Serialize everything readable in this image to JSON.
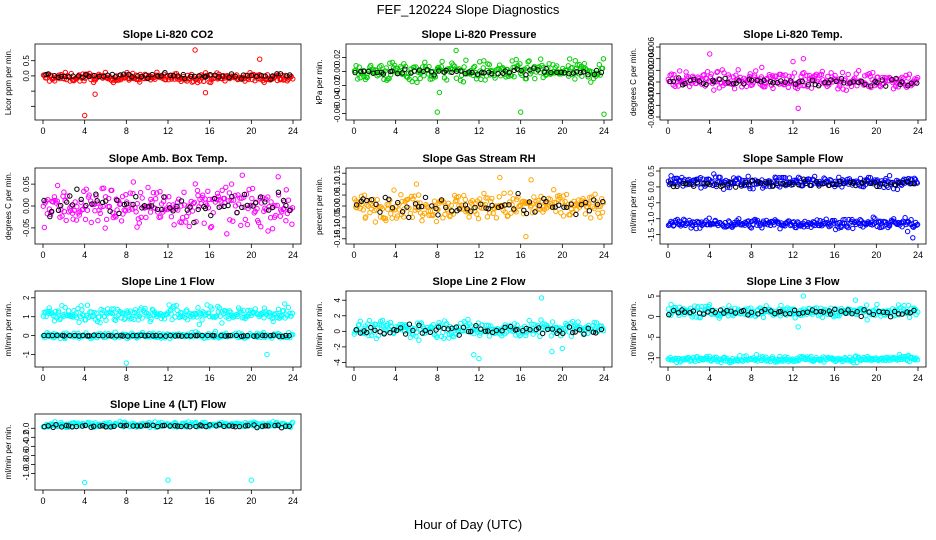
{
  "figure": {
    "title": "FEF_120224  Slope Diagnostics",
    "xlabel": "Hour of Day (UTC)"
  },
  "chart_data": [
    {
      "type": "scatter",
      "title": "Slope Li-820 CO2",
      "ylabel": "Licor ppm per min.",
      "color": "#ff0000",
      "xlim": [
        0,
        24
      ],
      "ylim": [
        -1.35,
        0.95
      ],
      "xticks": [
        0,
        4,
        8,
        12,
        16,
        20,
        24
      ],
      "yticks": [
        -1.0,
        -0.5,
        0.0,
        0.5
      ],
      "ytick_labels": [
        "",
        "",
        "0.0",
        "0.5"
      ],
      "bands": [
        {
          "center": -0.05,
          "spread": 0.12
        }
      ],
      "black_band": {
        "center": 0.0,
        "spread": 0.08
      },
      "outliers": [
        {
          "x": 4.0,
          "y": -1.3
        },
        {
          "x": 14.6,
          "y": 0.85
        },
        {
          "x": 20.8,
          "y": 0.55
        },
        {
          "x": 15.6,
          "y": -0.55
        },
        {
          "x": 5.0,
          "y": -0.6
        }
      ]
    },
    {
      "type": "scatter",
      "title": "Slope Li-820 Pressure",
      "ylabel": "kPa per min.",
      "color": "#00cc00",
      "xlim": [
        0,
        24
      ],
      "ylim": [
        -0.065,
        0.035
      ],
      "xticks": [
        0,
        4,
        8,
        12,
        16,
        20,
        24
      ],
      "yticks": [
        -0.06,
        -0.04,
        -0.02,
        0.0,
        0.02
      ],
      "ytick_labels": [
        "-0.06",
        "-0.04",
        "-0.02",
        "0.00",
        "0.02"
      ],
      "bands": [
        {
          "center": 0.0,
          "spread": 0.012
        }
      ],
      "black_band": {
        "center": 0.0,
        "spread": 0.005
      },
      "outliers": [
        {
          "x": 8.0,
          "y": -0.058
        },
        {
          "x": 16.0,
          "y": -0.058
        },
        {
          "x": 24.0,
          "y": -0.061
        },
        {
          "x": 8.2,
          "y": -0.03
        },
        {
          "x": 9.8,
          "y": 0.03
        }
      ]
    },
    {
      "type": "scatter",
      "title": "Slope Li-820 Temp.",
      "ylabel": "degrees C per min.",
      "color": "#ff00ff",
      "xlim": [
        0,
        24
      ],
      "ylim": [
        -0.006,
        0.006
      ],
      "xticks": [
        0,
        4,
        8,
        12,
        16,
        20,
        24
      ],
      "yticks": [
        -0.006,
        -0.004,
        -0.002,
        0.0,
        0.002,
        0.004,
        0.006
      ],
      "ytick_labels": [
        "-0.006",
        "-0.004",
        "-0.002",
        "0.000",
        "0.002",
        "0.004",
        "0.006"
      ],
      "bands": [
        {
          "center": 0.0003,
          "spread": 0.0012
        }
      ],
      "black_band": {
        "center": 0.0,
        "spread": 0.0008
      },
      "outliers": [
        {
          "x": 4.0,
          "y": 0.0048
        },
        {
          "x": 12.0,
          "y": 0.0035
        },
        {
          "x": 12.5,
          "y": -0.0045
        },
        {
          "x": 13.0,
          "y": 0.004
        },
        {
          "x": 9.0,
          "y": 0.0025
        }
      ]
    },
    {
      "type": "scatter",
      "title": "Slope Amb. Box Temp.",
      "ylabel": "degrees C per min.",
      "color": "#ff00ff",
      "xlim": [
        0,
        24
      ],
      "ylim": [
        -0.08,
        0.08
      ],
      "xticks": [
        0,
        4,
        8,
        12,
        16,
        20,
        24
      ],
      "yticks": [
        -0.05,
        0.0,
        0.05
      ],
      "ytick_labels": [
        "-0.05",
        "0.00",
        "0.05"
      ],
      "bands": [
        {
          "center": 0.0,
          "spread": 0.04
        }
      ],
      "black_band": {
        "center": 0.0,
        "spread": 0.03
      },
      "outliers": []
    },
    {
      "type": "scatter",
      "title": "Slope Gas Stream RH",
      "ylabel": "percent per min.",
      "color": "#ffa500",
      "xlim": [
        0,
        24
      ],
      "ylim": [
        -0.16,
        0.16
      ],
      "xticks": [
        0,
        4,
        8,
        12,
        16,
        20,
        24
      ],
      "yticks": [
        -0.15,
        -0.1,
        -0.05,
        0.0,
        0.05,
        0.1,
        0.15
      ],
      "ytick_labels": [
        "-0.15",
        "-0.10",
        "-0.05",
        "0.00",
        "0.05",
        "0.10",
        "0.15"
      ],
      "bands": [
        {
          "center": 0.0,
          "spread": 0.05
        }
      ],
      "black_band": {
        "center": 0.0,
        "spread": 0.04
      },
      "outliers": [
        {
          "x": 14.0,
          "y": 0.13
        },
        {
          "x": 16.5,
          "y": -0.14
        },
        {
          "x": 17.0,
          "y": 0.12
        },
        {
          "x": 6.0,
          "y": 0.1
        }
      ]
    },
    {
      "type": "scatter",
      "title": "Slope Sample Flow",
      "ylabel": "ml/min per min.",
      "color": "#0000ff",
      "xlim": [
        0,
        24
      ],
      "ylim": [
        -1.7,
        0.5
      ],
      "xticks": [
        0,
        4,
        8,
        12,
        16,
        20,
        24
      ],
      "yticks": [
        -1.5,
        -1.0,
        -0.5,
        0.0,
        0.5
      ],
      "ytick_labels": [
        "-1.5",
        "-1.0",
        "-0.5",
        "0.0",
        "0.5"
      ],
      "bands": [
        {
          "center": 0.15,
          "spread": 0.15
        },
        {
          "center": -1.15,
          "spread": 0.12
        }
      ],
      "black_band": {
        "center": 0.1,
        "spread": 0.1
      },
      "outliers": [
        {
          "x": 23.5,
          "y": -1.6
        },
        {
          "x": 23.0,
          "y": -1.4
        }
      ]
    },
    {
      "type": "scatter",
      "title": "Slope Line 1 Flow",
      "ylabel": "ml/min per min.",
      "color": "#00ffff",
      "xlim": [
        0,
        24
      ],
      "ylim": [
        -1.5,
        2.2
      ],
      "xticks": [
        0,
        4,
        8,
        12,
        16,
        20,
        24
      ],
      "yticks": [
        -1,
        0,
        1,
        2
      ],
      "ytick_labels": [
        "-1",
        "0",
        "1",
        "2"
      ],
      "bands": [
        {
          "center": 1.15,
          "spread": 0.35
        },
        {
          "center": 0.0,
          "spread": 0.12
        }
      ],
      "black_band": {
        "center": 0.0,
        "spread": 0.03
      },
      "outliers": [
        {
          "x": 8.0,
          "y": -1.45
        },
        {
          "x": 21.5,
          "y": -1.0
        },
        {
          "x": 15.0,
          "y": 0.6
        }
      ]
    },
    {
      "type": "scatter",
      "title": "Slope Line 2 Flow",
      "ylabel": "ml/min per min.",
      "color": "#00ffff",
      "xlim": [
        0,
        24
      ],
      "ylim": [
        -4.2,
        4.8
      ],
      "xticks": [
        0,
        4,
        8,
        12,
        16,
        20,
        24
      ],
      "yticks": [
        -4,
        -2,
        0,
        2,
        4
      ],
      "ytick_labels": [
        "-4",
        "-2",
        "0",
        "2",
        "4"
      ],
      "bands": [
        {
          "center": 0.3,
          "spread": 0.9
        }
      ],
      "black_band": {
        "center": 0.2,
        "spread": 0.6
      },
      "outliers": [
        {
          "x": 18.0,
          "y": 4.3
        },
        {
          "x": 12.0,
          "y": -3.5
        },
        {
          "x": 11.5,
          "y": -3.0
        },
        {
          "x": 19.0,
          "y": -2.6
        },
        {
          "x": 20.0,
          "y": -2.2
        }
      ]
    },
    {
      "type": "scatter",
      "title": "Slope Line 3 Flow",
      "ylabel": "ml/min per min.",
      "color": "#00ffff",
      "xlim": [
        0,
        24
      ],
      "ylim": [
        -11.5,
        5.5
      ],
      "xticks": [
        0,
        4,
        8,
        12,
        16,
        20,
        24
      ],
      "yticks": [
        -10,
        -5,
        0,
        5
      ],
      "ytick_labels": [
        "-10",
        "-5",
        "0",
        "5"
      ],
      "bands": [
        {
          "center": 1.2,
          "spread": 1.2
        },
        {
          "center": -10.3,
          "spread": 0.6
        }
      ],
      "black_band": {
        "center": 1.0,
        "spread": 0.8
      },
      "outliers": [
        {
          "x": 13.0,
          "y": 5.0
        },
        {
          "x": 12.5,
          "y": -2.5
        },
        {
          "x": 18.0,
          "y": 4.0
        }
      ]
    },
    {
      "type": "scatter",
      "title": "Slope Line 4 (LT) Flow",
      "ylabel": "ml/min per min.",
      "color": "#00ffff",
      "xlim": [
        0,
        24
      ],
      "ylim": [
        -1.3,
        0.25
      ],
      "xticks": [
        0,
        4,
        8,
        12,
        16,
        20,
        24
      ],
      "yticks": [
        -1.0,
        -0.8,
        -0.6,
        -0.4,
        -0.2,
        0.0
      ],
      "ytick_labels": [
        "-1.0",
        "-0.8",
        "-0.6",
        "-0.4",
        "-0.2",
        "0.0"
      ],
      "bands": [
        {
          "center": 0.08,
          "spread": 0.05
        }
      ],
      "black_band": {
        "center": 0.05,
        "spread": 0.03
      },
      "outliers": [
        {
          "x": 4.0,
          "y": -1.2
        },
        {
          "x": 12.0,
          "y": -1.15
        },
        {
          "x": 20.0,
          "y": -1.15
        }
      ]
    }
  ]
}
